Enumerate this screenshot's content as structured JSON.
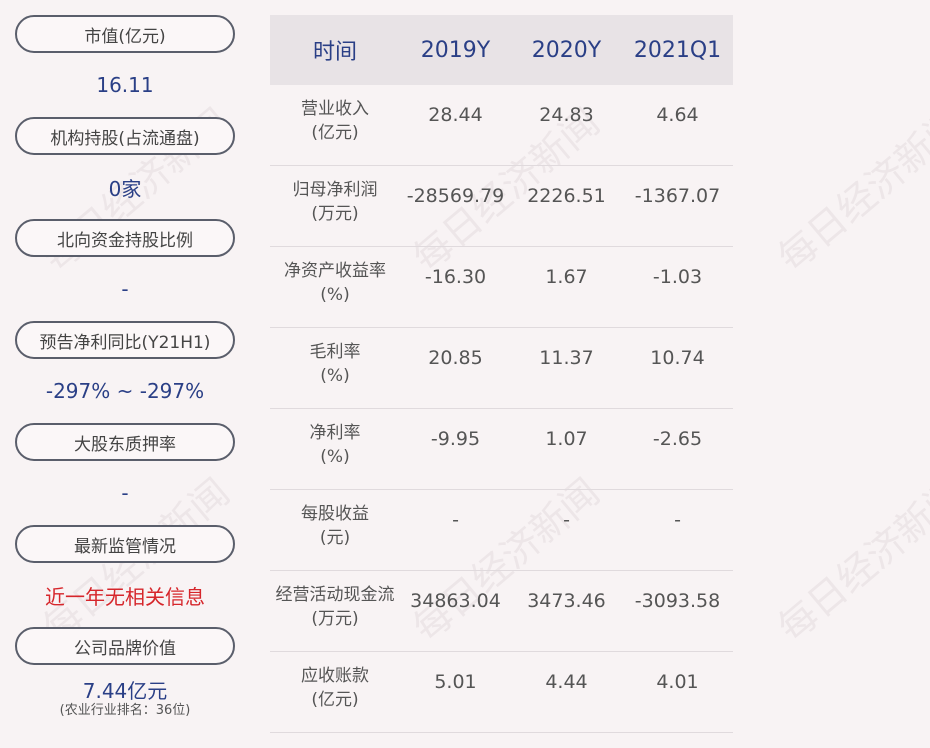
{
  "left_panel": [
    {
      "label": "市值(亿元)",
      "value": "16.11"
    },
    {
      "label": "机构持股(占流通盘)",
      "value": "0家"
    },
    {
      "label": "北向资金持股比例",
      "value": "-"
    },
    {
      "label": "预告净利同比(Y21H1)",
      "value": "-297% ~ -297%"
    },
    {
      "label": "大股东质押率",
      "value": "-"
    },
    {
      "label": "最新监管情况",
      "value": "近一年无相关信息"
    },
    {
      "label": "公司品牌价值",
      "value": "7.44亿元",
      "note": "(农业行业排名：36位)"
    }
  ],
  "table": {
    "headers": [
      "时间",
      "2019Y",
      "2020Y",
      "2021Q1"
    ],
    "rows": [
      {
        "label": "营业收入",
        "unit": "(亿元)",
        "values": [
          "28.44",
          "24.83",
          "4.64"
        ]
      },
      {
        "label": "归母净利润",
        "unit": "(万元)",
        "values": [
          "-28569.79",
          "2226.51",
          "-1367.07"
        ]
      },
      {
        "label": "净资产收益率",
        "unit": "(%)",
        "values": [
          "-16.30",
          "1.67",
          "-1.03"
        ]
      },
      {
        "label": "毛利率",
        "unit": "(%)",
        "values": [
          "20.85",
          "11.37",
          "10.74"
        ]
      },
      {
        "label": "净利率",
        "unit": "(%)",
        "values": [
          "-9.95",
          "1.07",
          "-2.65"
        ]
      },
      {
        "label": "每股收益",
        "unit": "(元)",
        "values": [
          "-",
          "-",
          "-"
        ]
      },
      {
        "label": "经营活动现金流",
        "unit": "(万元)",
        "values": [
          "34863.04",
          "3473.46",
          "-3093.58"
        ]
      },
      {
        "label": "应收账款",
        "unit": "(亿元)",
        "values": [
          "5.01",
          "4.44",
          "4.01"
        ]
      }
    ]
  },
  "watermark": "每日经济新闻"
}
